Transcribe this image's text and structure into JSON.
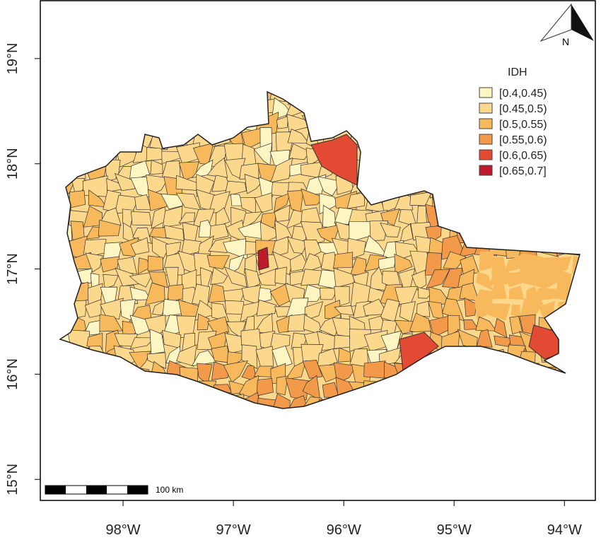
{
  "map": {
    "xlim": [
      -98.75,
      -93.72
    ],
    "ylim": [
      14.8,
      19.55
    ],
    "xticks": [
      {
        "value": -98,
        "label": "98°W"
      },
      {
        "value": -97,
        "label": "97°W"
      },
      {
        "value": -96,
        "label": "96°W"
      },
      {
        "value": -95,
        "label": "95°W"
      },
      {
        "value": -94,
        "label": "94°W"
      }
    ],
    "yticks": [
      {
        "value": 15,
        "label": "15°N"
      },
      {
        "value": 16,
        "label": "16°N"
      },
      {
        "value": 17,
        "label": "17°N"
      },
      {
        "value": 18,
        "label": "18°N"
      },
      {
        "value": 19,
        "label": "19°N"
      }
    ],
    "legend": {
      "title": "IDH",
      "entries": [
        {
          "label": "[0.4,0.45)",
          "color": "#fdf5c2"
        },
        {
          "label": "[0.45,0.5)",
          "color": "#fcd88c"
        },
        {
          "label": "[0.5,0.55)",
          "color": "#f8b95c"
        },
        {
          "label": "[0.55,0.6)",
          "color": "#f2994a"
        },
        {
          "label": "[0.6,0.65)",
          "color": "#e34a33"
        },
        {
          "label": "[0.65,0.7]",
          "color": "#bd1a2c"
        }
      ]
    },
    "scale_bar": "100 km",
    "north": "N"
  }
}
